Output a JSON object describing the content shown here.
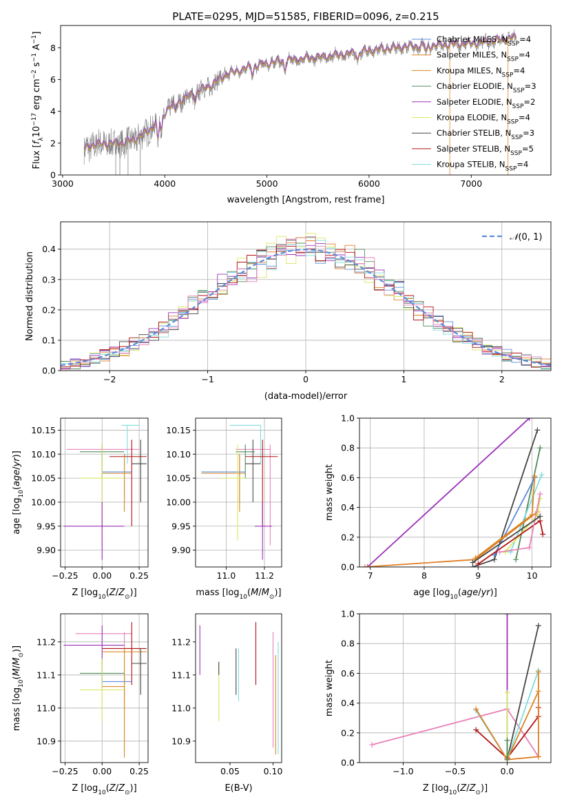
{
  "colors": {
    "chabrier_miles": "#5b8ad9",
    "salpeter_miles": "#e07e24",
    "kroupa_miles": "#d98620",
    "chabrier_elodie": "#4f8a58",
    "salpeter_elodie": "#9b30b8",
    "kroupa_elodie": "#d8e860",
    "chabrier_stelib": "#444444",
    "salpeter_stelib": "#b01010",
    "kroupa_stelib": "#7fdcdc",
    "pink": "#e880b8",
    "gray_data": "#808080",
    "gauss": "#5b8ad9"
  },
  "chart_data": [
    {
      "type": "line",
      "name": "spectrum",
      "title": "PLATE=0295, MJD=51585, FIBERID=0096, z=0.215",
      "xlabel": "wavelength [Angstrom, rest frame]",
      "ylabel": "Flux [f_λ10^-17 erg cm^-2 s^-1 A^-1]",
      "xlim": [
        2980,
        7780
      ],
      "ylim": [
        0,
        9.4
      ],
      "xticks": [
        3000,
        4000,
        5000,
        6000,
        7000
      ],
      "yticks": [
        0,
        2,
        4,
        6,
        8
      ],
      "continuum": {
        "x": [
          3210,
          3300,
          3450,
          3600,
          3700,
          3850,
          3950,
          4050,
          4200,
          4300,
          4450,
          4600,
          4800,
          5000,
          5200,
          5400,
          5600,
          5800,
          6000,
          6200,
          6400,
          6600,
          6800,
          7000,
          7200,
          7400
        ],
        "y": [
          1.6,
          1.9,
          1.95,
          2.0,
          2.2,
          2.8,
          3.5,
          4.3,
          4.8,
          5.2,
          5.6,
          6.3,
          6.7,
          7.0,
          7.2,
          7.3,
          7.45,
          7.6,
          7.8,
          7.95,
          8.05,
          8.1,
          8.2,
          8.25,
          8.4,
          8.6
        ]
      },
      "legend": [
        "Chabrier MILES, N_SSP=4",
        "Salpeter MILES, N_SSP=4",
        "Kroupa MILES, N_SSP=4",
        "Chabrier ELODIE, N_SSP=3",
        "Salpeter ELODIE, N_SSP=2",
        "Kroupa ELODIE, N_SSP=4",
        "Chabrier STELIB, N_SSP=3",
        "Salpeter STELIB, N_SSP=5",
        "Kroupa STELIB, N_SSP=4"
      ],
      "legend_placement": "upper right",
      "grid": false
    },
    {
      "type": "area",
      "name": "residual histogram",
      "xlabel": "(data-model)/error",
      "ylabel": "Normed distribution",
      "xlim": [
        -2.5,
        2.5
      ],
      "ylim": [
        0,
        0.49
      ],
      "xticks": [
        -2,
        -1,
        0,
        1,
        2
      ],
      "yticks": [
        0.0,
        0.1,
        0.2,
        0.3,
        0.4
      ],
      "legend": [
        "N(0,1)"
      ],
      "legend_placement": "upper right",
      "grid": true,
      "bin_width": 0.1
    },
    {
      "type": "scatter",
      "name": "age vs Z",
      "xlabel": "Z [log10(Z/Z☉)]",
      "ylabel": "age [log10(age/yr)]",
      "xlim": [
        -0.28,
        0.31
      ],
      "ylim": [
        9.865,
        10.175
      ],
      "xticks": [
        -0.25,
        0.0,
        0.25
      ],
      "yticks": [
        9.9,
        9.95,
        10.0,
        10.05,
        10.1,
        10.15
      ],
      "grid": true,
      "points": [
        {
          "c": "kroupa_stelib",
          "x": 0.17,
          "y": 10.16,
          "xe": [
            0.13,
            0.25
          ],
          "ye": [
            10.08,
            10.16
          ]
        },
        {
          "c": "pink",
          "x": 0.0,
          "y": 10.11,
          "xe": [
            -0.24,
            0.25
          ],
          "ye": [
            9.91,
            10.12
          ]
        },
        {
          "c": "chabrier_elodie",
          "x": 0.0,
          "y": 10.105,
          "xe": [
            -0.15,
            0.15
          ],
          "ye": [
            10.05,
            10.12
          ]
        },
        {
          "c": "salpeter_stelib",
          "x": 0.2,
          "y": 10.095,
          "xe": [
            0.05,
            0.3
          ],
          "ye": [
            9.95,
            10.13
          ]
        },
        {
          "c": "chabrier_stelib",
          "x": 0.26,
          "y": 10.08,
          "xe": [
            0.2,
            0.3
          ],
          "ye": [
            10.0,
            10.13
          ]
        },
        {
          "c": "chabrier_miles",
          "x": 0.15,
          "y": 10.063,
          "xe": [
            0.0,
            0.2
          ],
          "ye": [
            10.0,
            10.1
          ]
        },
        {
          "c": "kroupa_miles",
          "x": 0.15,
          "y": 10.06,
          "xe": [
            0.0,
            0.2
          ],
          "ye": [
            9.98,
            10.1
          ]
        },
        {
          "c": "kroupa_elodie",
          "x": 0.0,
          "y": 10.05,
          "xe": [
            -0.15,
            0.15
          ],
          "ye": [
            9.92,
            10.12
          ]
        },
        {
          "c": "salpeter_elodie",
          "x": 0.0,
          "y": 9.95,
          "xe": [
            -0.26,
            0.15
          ],
          "ye": [
            9.88,
            10.0
          ]
        }
      ]
    },
    {
      "type": "scatter",
      "name": "age vs mass",
      "xlabel": "mass [log10(M/M☉)]",
      "ylabel": "",
      "xlim": [
        10.84,
        11.29
      ],
      "ylim": [
        9.865,
        10.175
      ],
      "xticks": [
        11.0,
        11.2
      ],
      "yticks": [
        9.9,
        9.95,
        10.0,
        10.05,
        10.1,
        10.15
      ],
      "grid": true,
      "points": [
        {
          "c": "kroupa_stelib",
          "x": 11.18,
          "y": 10.16,
          "xe": [
            11.02,
            11.18
          ],
          "ye": [
            10.08,
            10.16
          ]
        },
        {
          "c": "pink",
          "x": 11.23,
          "y": 10.11,
          "xe": [
            11.05,
            11.23
          ],
          "ye": [
            9.91,
            10.12
          ]
        },
        {
          "c": "chabrier_elodie",
          "x": 11.1,
          "y": 10.105,
          "xe": [
            11.05,
            11.15
          ],
          "ye": [
            10.05,
            10.12
          ]
        },
        {
          "c": "salpeter_stelib",
          "x": 11.19,
          "y": 10.095,
          "xe": [
            11.1,
            11.27
          ],
          "ye": [
            9.95,
            10.13
          ]
        },
        {
          "c": "chabrier_stelib",
          "x": 11.14,
          "y": 10.08,
          "xe": [
            11.1,
            11.18
          ],
          "ye": [
            10.0,
            10.13
          ]
        },
        {
          "c": "chabrier_miles",
          "x": 11.07,
          "y": 10.063,
          "xe": [
            10.87,
            11.1
          ],
          "ye": [
            10.0,
            10.1
          ]
        },
        {
          "c": "kroupa_miles",
          "x": 11.07,
          "y": 10.06,
          "xe": [
            10.87,
            11.1
          ],
          "ye": [
            9.98,
            10.1
          ]
        },
        {
          "c": "kroupa_elodie",
          "x": 11.06,
          "y": 10.05,
          "xe": [
            10.97,
            11.1
          ],
          "ye": [
            9.92,
            10.12
          ]
        },
        {
          "c": "salpeter_elodie",
          "x": 11.19,
          "y": 9.95,
          "xe": [
            11.15,
            11.24
          ],
          "ye": [
            9.88,
            10.0
          ]
        }
      ]
    },
    {
      "type": "line",
      "name": "mass weight vs age",
      "xlabel": "age [log10(age/yr)]",
      "ylabel": "mass weight",
      "xlim": [
        6.8,
        10.35
      ],
      "ylim": [
        0,
        1.0
      ],
      "xticks": [
        7,
        8,
        9,
        10
      ],
      "yticks": [
        0.0,
        0.2,
        0.4,
        0.6,
        0.8,
        1.0
      ],
      "grid": true,
      "series": [
        {
          "c": "salpeter_elodie",
          "x": [
            6.95,
            9.95
          ],
          "y": [
            0.0,
            1.0
          ]
        },
        {
          "c": "chabrier_stelib",
          "x": [
            8.9,
            9.3,
            10.1
          ],
          "y": [
            0.0,
            0.05,
            0.92
          ]
        },
        {
          "c": "chabrier_elodie",
          "x": [
            9.7,
            10.15
          ],
          "y": [
            0.05,
            0.8
          ]
        },
        {
          "c": "kroupa_stelib",
          "x": [
            9.6,
            10.18
          ],
          "y": [
            0.1,
            0.62
          ]
        },
        {
          "c": "chabrier_miles",
          "x": [
            9.3,
            10.05
          ],
          "y": [
            0.08,
            0.6
          ]
        },
        {
          "c": "kroupa_miles",
          "x": [
            8.95,
            10.0,
            10.05
          ],
          "y": [
            0.06,
            0.35,
            0.61
          ]
        },
        {
          "c": "salpeter_miles",
          "x": [
            6.9,
            8.95,
            10.1
          ],
          "y": [
            0.0,
            0.05,
            0.37
          ]
        },
        {
          "c": "kroupa_elodie",
          "x": [
            9.5,
            10.1,
            10.15
          ],
          "y": [
            0.1,
            0.35,
            0.46
          ]
        },
        {
          "c": "salpeter_stelib",
          "x": [
            9.0,
            10.15,
            10.2
          ],
          "y": [
            0.02,
            0.31,
            0.22
          ]
        },
        {
          "c": "pink",
          "x": [
            9.4,
            9.95,
            10.15
          ],
          "y": [
            0.1,
            0.13,
            0.49
          ]
        },
        {
          "c": "chabrier_stelib",
          "x": [
            8.9,
            10.15
          ],
          "y": [
            0.03,
            0.34
          ]
        }
      ]
    },
    {
      "type": "scatter",
      "name": "mass vs Z",
      "xlabel": "Z [log10(Z/Z☉)]",
      "ylabel": "mass [log10(M/M☉)]",
      "xlim": [
        -0.28,
        0.31
      ],
      "ylim": [
        10.835,
        11.285
      ],
      "xticks": [
        -0.25,
        0.0,
        0.25
      ],
      "yticks": [
        10.9,
        11.0,
        11.1,
        11.2
      ],
      "grid": true,
      "points": [
        {
          "c": "pink",
          "x": 0.15,
          "y": 11.225,
          "xe": [
            -0.18,
            0.2
          ],
          "ye": [
            10.88,
            11.23
          ]
        },
        {
          "c": "salpeter_stelib",
          "x": 0.2,
          "y": 11.18,
          "xe": [
            0.0,
            0.3
          ],
          "ye": [
            11.07,
            11.26
          ]
        },
        {
          "c": "salpeter_elodie",
          "x": 0.0,
          "y": 11.19,
          "xe": [
            -0.26,
            0.15
          ],
          "ye": [
            11.13,
            11.25
          ]
        },
        {
          "c": "kroupa_miles",
          "x": 0.15,
          "y": 11.17,
          "xe": [
            0.0,
            0.3
          ],
          "ye": [
            10.85,
            11.18
          ]
        },
        {
          "c": "chabrier_stelib",
          "x": 0.26,
          "y": 11.135,
          "xe": [
            0.2,
            0.3
          ],
          "ye": [
            11.04,
            11.18
          ]
        },
        {
          "c": "chabrier_elodie",
          "x": 0.0,
          "y": 11.105,
          "xe": [
            -0.15,
            0.15
          ],
          "ye": [
            11.06,
            11.15
          ]
        },
        {
          "c": "chabrier_miles",
          "x": 0.15,
          "y": 11.08,
          "xe": [
            0.0,
            0.2
          ],
          "ye": [
            11.04,
            11.1
          ]
        },
        {
          "c": "kroupa_miles",
          "x": 0.15,
          "y": 11.065,
          "xe": [
            0.0,
            0.15
          ],
          "ye": [
            11.0,
            11.1
          ]
        },
        {
          "c": "kroupa_elodie",
          "x": 0.0,
          "y": 11.055,
          "xe": [
            -0.15,
            0.15
          ],
          "ye": [
            10.96,
            11.15
          ]
        }
      ]
    },
    {
      "type": "scatter",
      "name": "mass vs E(B-V)",
      "xlabel": "E(B-V)",
      "ylabel": "",
      "xlim": [
        0.01,
        0.11
      ],
      "ylim": [
        10.835,
        11.285
      ],
      "xticks": [
        0.05,
        0.1
      ],
      "yticks": [
        10.9,
        11.0,
        11.1,
        11.2
      ],
      "grid": false,
      "points": [
        {
          "c": "salpeter_elodie",
          "x": 0.015,
          "y": 11.17,
          "ye": [
            11.1,
            11.25
          ]
        },
        {
          "c": "kroupa_elodie",
          "x": 0.037,
          "y": 11.06,
          "ye": [
            10.96,
            11.14
          ]
        },
        {
          "c": "chabrier_stelib",
          "x": 0.037,
          "y": 11.11,
          "ye": [
            11.1,
            11.14
          ]
        },
        {
          "c": "chabrier_stelib",
          "x": 0.057,
          "y": 11.11,
          "ye": [
            11.04,
            11.18
          ]
        },
        {
          "c": "kroupa_stelib",
          "x": 0.06,
          "y": 11.1,
          "ye": [
            11.02,
            11.18
          ]
        },
        {
          "c": "salpeter_stelib",
          "x": 0.08,
          "y": 11.17,
          "ye": [
            11.07,
            11.26
          ]
        },
        {
          "c": "pink",
          "x": 0.1,
          "y": 11.1,
          "ye": [
            10.88,
            11.23
          ]
        },
        {
          "c": "kroupa_miles",
          "x": 0.103,
          "y": 11.0,
          "ye": [
            10.86,
            11.16
          ]
        },
        {
          "c": "kroupa_stelib",
          "x": 0.106,
          "y": 11.05,
          "ye": [
            10.86,
            11.2
          ]
        }
      ]
    },
    {
      "type": "line",
      "name": "mass weight vs Z",
      "xlabel": "Z [log10(Z/Z☉)]",
      "ylabel": "mass weight",
      "xlim": [
        -1.42,
        0.42
      ],
      "ylim": [
        0,
        1.0
      ],
      "xticks": [
        -1.0,
        -0.5,
        0.0
      ],
      "yticks": [
        0.0,
        0.2,
        0.4,
        0.6,
        0.8,
        1.0
      ],
      "grid": true,
      "series": [
        {
          "c": "pink",
          "x": [
            -1.3,
            0.0,
            0.3
          ],
          "y": [
            0.12,
            0.36,
            0.04
          ]
        },
        {
          "c": "salpeter_elodie",
          "x": [
            0.0,
            0.0
          ],
          "y": [
            1.0,
            0.02
          ]
        },
        {
          "c": "chabrier_stelib",
          "x": [
            0.0,
            0.3
          ],
          "y": [
            0.02,
            0.92
          ]
        },
        {
          "c": "kroupa_stelib",
          "x": [
            -0.3,
            0.0,
            0.3
          ],
          "y": [
            0.35,
            0.02,
            0.62
          ]
        },
        {
          "c": "salpeter_stelib",
          "x": [
            -0.3,
            0.0,
            0.3,
            0.3
          ],
          "y": [
            0.22,
            0.03,
            0.31,
            0.37
          ]
        },
        {
          "c": "salpeter_miles",
          "x": [
            -0.3,
            0.0,
            0.3,
            0.3
          ],
          "y": [
            0.36,
            0.02,
            0.04,
            0.61
          ]
        },
        {
          "c": "kroupa_miles",
          "x": [
            0.0,
            0.3
          ],
          "y": [
            0.02,
            0.48
          ]
        },
        {
          "c": "kroupa_elodie",
          "x": [
            0.0,
            0.0
          ],
          "y": [
            0.47,
            0.05
          ]
        },
        {
          "c": "chabrier_elodie",
          "x": [
            0.0,
            0.0
          ],
          "y": [
            0.15,
            0.02
          ]
        }
      ]
    }
  ],
  "panel_text": {
    "title": "PLATE=0295, MJD=51585, FIBERID=0096, z=0.215"
  }
}
